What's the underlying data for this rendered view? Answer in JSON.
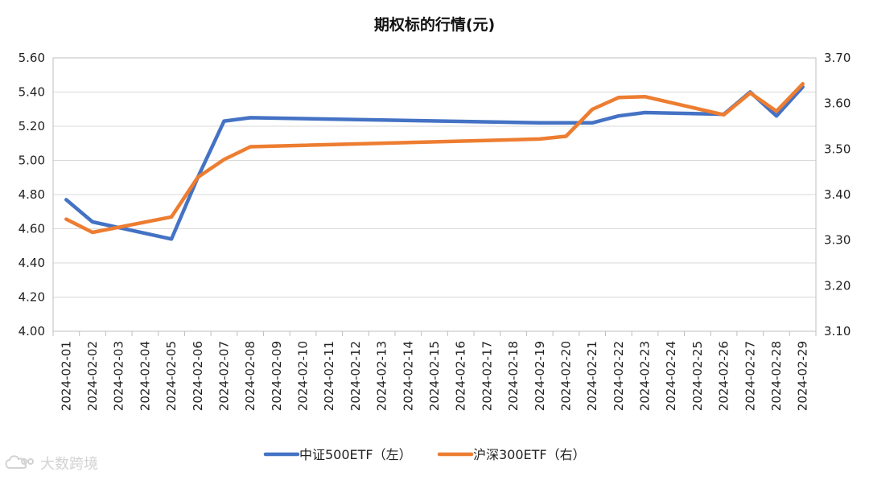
{
  "chart_data": {
    "type": "line",
    "title": "期权标的行情(元)",
    "categories": [
      "2024-02-01",
      "2024-02-02",
      "2024-02-03",
      "2024-02-04",
      "2024-02-05",
      "2024-02-06",
      "2024-02-07",
      "2024-02-08",
      "2024-02-09",
      "2024-02-10",
      "2024-02-11",
      "2024-02-12",
      "2024-02-13",
      "2024-02-14",
      "2024-02-15",
      "2024-02-16",
      "2024-02-17",
      "2024-02-18",
      "2024-02-19",
      "2024-02-20",
      "2024-02-21",
      "2024-02-22",
      "2024-02-23",
      "2024-02-24",
      "2024-02-25",
      "2024-02-26",
      "2024-02-27",
      "2024-02-28",
      "2024-02-29"
    ],
    "y_left": {
      "ylim": [
        4.0,
        5.6
      ],
      "ticks": [
        "4.00",
        "4.20",
        "4.40",
        "4.60",
        "4.80",
        "5.00",
        "5.20",
        "5.40",
        "5.60"
      ]
    },
    "y_right": {
      "ylim": [
        3.1,
        3.7
      ],
      "ticks": [
        "3.10",
        "3.20",
        "3.30",
        "3.40",
        "3.50",
        "3.60",
        "3.70"
      ]
    },
    "grid": true,
    "legend_position": "bottom",
    "series": [
      {
        "name": "中证500ETF（左）",
        "axis": "left",
        "color": "#4472C4",
        "points": [
          {
            "x": "2024-02-01",
            "y": 4.77
          },
          {
            "x": "2024-02-02",
            "y": 4.64
          },
          {
            "x": "2024-02-05",
            "y": 4.54
          },
          {
            "x": "2024-02-06",
            "y": 4.9
          },
          {
            "x": "2024-02-07",
            "y": 5.23
          },
          {
            "x": "2024-02-08",
            "y": 5.25
          },
          {
            "x": "2024-02-19",
            "y": 5.22
          },
          {
            "x": "2024-02-20",
            "y": 5.22
          },
          {
            "x": "2024-02-21",
            "y": 5.22
          },
          {
            "x": "2024-02-22",
            "y": 5.26
          },
          {
            "x": "2024-02-23",
            "y": 5.28
          },
          {
            "x": "2024-02-26",
            "y": 5.27
          },
          {
            "x": "2024-02-27",
            "y": 5.4
          },
          {
            "x": "2024-02-28",
            "y": 5.26
          },
          {
            "x": "2024-02-29",
            "y": 5.43
          }
        ]
      },
      {
        "name": "沪深300ETF（右）",
        "axis": "right",
        "color": "#ED7D31",
        "points": [
          {
            "x": "2024-02-01",
            "y": 3.346
          },
          {
            "x": "2024-02-02",
            "y": 3.317
          },
          {
            "x": "2024-02-05",
            "y": 3.351
          },
          {
            "x": "2024-02-06",
            "y": 3.438
          },
          {
            "x": "2024-02-07",
            "y": 3.477
          },
          {
            "x": "2024-02-08",
            "y": 3.505
          },
          {
            "x": "2024-02-19",
            "y": 3.522
          },
          {
            "x": "2024-02-20",
            "y": 3.528
          },
          {
            "x": "2024-02-21",
            "y": 3.587
          },
          {
            "x": "2024-02-22",
            "y": 3.613
          },
          {
            "x": "2024-02-23",
            "y": 3.615
          },
          {
            "x": "2024-02-26",
            "y": 3.575
          },
          {
            "x": "2024-02-27",
            "y": 3.623
          },
          {
            "x": "2024-02-28",
            "y": 3.583
          },
          {
            "x": "2024-02-29",
            "y": 3.643
          }
        ]
      }
    ]
  },
  "watermark": {
    "text": "大数跨境",
    "logo_icon": "cloud-logo-icon"
  }
}
